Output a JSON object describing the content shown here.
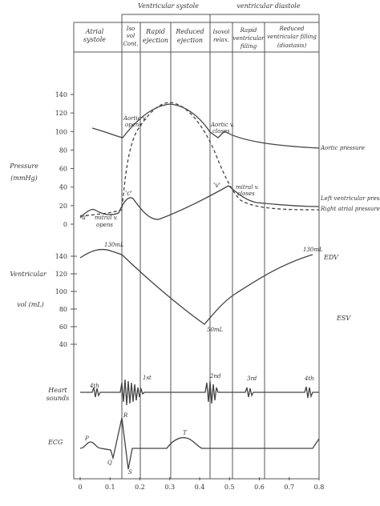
{
  "header": {
    "systole": "Ventricular systole",
    "diastole": "ventricular diastole"
  },
  "phases": [
    {
      "lines": [
        "Atrial",
        "systole"
      ]
    },
    {
      "lines": [
        "Iso",
        "vol",
        "Cont."
      ]
    },
    {
      "lines": [
        "Rapid",
        "ejection"
      ]
    },
    {
      "lines": [
        "Reduced",
        "ejection"
      ]
    },
    {
      "lines": [
        "Isovol",
        "relax."
      ]
    },
    {
      "lines": [
        "Rapid",
        "ventricular",
        "filling"
      ]
    },
    {
      "lines": [
        "Reduced",
        "ventricular filling",
        "(diastasis)"
      ]
    }
  ],
  "pressure_axis": {
    "label": [
      "Pressure",
      "(mmHg)"
    ],
    "ticks": [
      0,
      20,
      40,
      60,
      80,
      100,
      120,
      140
    ]
  },
  "volume_axis": {
    "label": [
      "Ventricular",
      "vol (mL)"
    ],
    "ticks": [
      40,
      60,
      80,
      100,
      120,
      140
    ]
  },
  "time_axis": {
    "ticks": [
      "0",
      "0.1",
      "0.2",
      "0.3",
      "0.4",
      "0.5",
      "0.6",
      "0.7",
      "0.8"
    ]
  },
  "curve_labels": {
    "aortic": "Aortic pressure",
    "lv": "Left ventricular pressure",
    "ra": "Right atrial pressure",
    "edv": "EDV",
    "esv": "ESV",
    "heart_sounds": [
      "Heart",
      "sounds"
    ],
    "ecg": "ECG"
  },
  "annotations": {
    "aortic_opens": [
      "Aortic v.",
      "opens"
    ],
    "aortic_closes": [
      "Aortic v.",
      "closes"
    ],
    "mitral_opens": [
      "mitral v.",
      "opens"
    ],
    "mitral_closes": [
      "mitral v.",
      "closes"
    ],
    "a": "'a'",
    "c": "'c'",
    "v": "'v'",
    "edv_left": "130mL",
    "esv_val": "50mL",
    "edv_right": "130mL",
    "s4a": "4th",
    "s1": "1st",
    "s2": "2nd",
    "s3": "3rd",
    "s4b": "4th",
    "P": "P",
    "Q": "Q",
    "R": "R",
    "S": "S",
    "T": "T"
  }
}
